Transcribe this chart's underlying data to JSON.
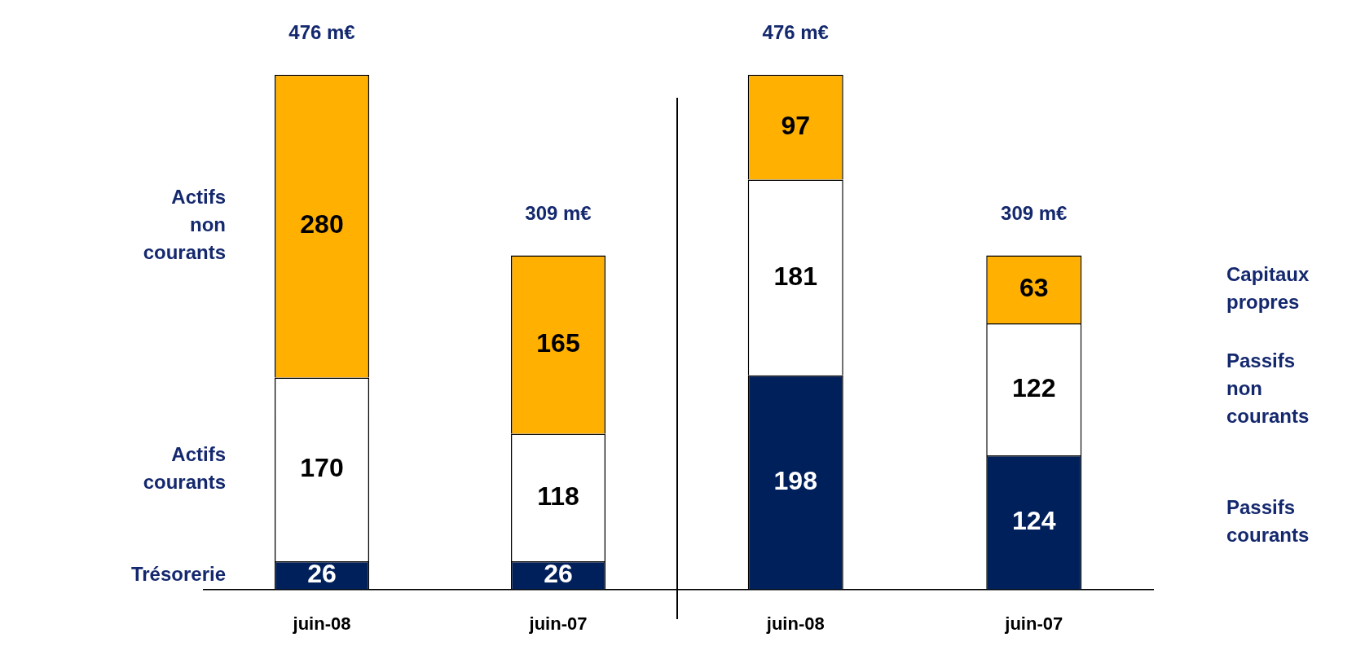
{
  "chart_data": [
    {
      "type": "bar",
      "stacked": true,
      "categories": [
        "juin-08",
        "juin-07"
      ],
      "data_labels": true,
      "totals": [
        "476 m€",
        "309 m€"
      ],
      "series": [
        {
          "name": "Trésorerie",
          "color": "#00205b",
          "values": [
            26,
            26
          ]
        },
        {
          "name": "Actifs courants",
          "color": "#ffffff",
          "values": [
            170,
            118
          ]
        },
        {
          "name": "Actifs non courants",
          "color": "#ffb000",
          "values": [
            280,
            165
          ]
        }
      ]
    },
    {
      "type": "bar",
      "stacked": true,
      "categories": [
        "juin-08",
        "juin-07"
      ],
      "data_labels": true,
      "totals": [
        "476 m€",
        "309 m€"
      ],
      "series": [
        {
          "name": "Passifs courants",
          "color": "#00205b",
          "values": [
            198,
            124
          ]
        },
        {
          "name": "Passifs non courants",
          "color": "#ffffff",
          "values": [
            181,
            122
          ]
        },
        {
          "name": "Capitaux propres",
          "color": "#ffb000",
          "values": [
            97,
            63
          ]
        }
      ]
    }
  ]
}
